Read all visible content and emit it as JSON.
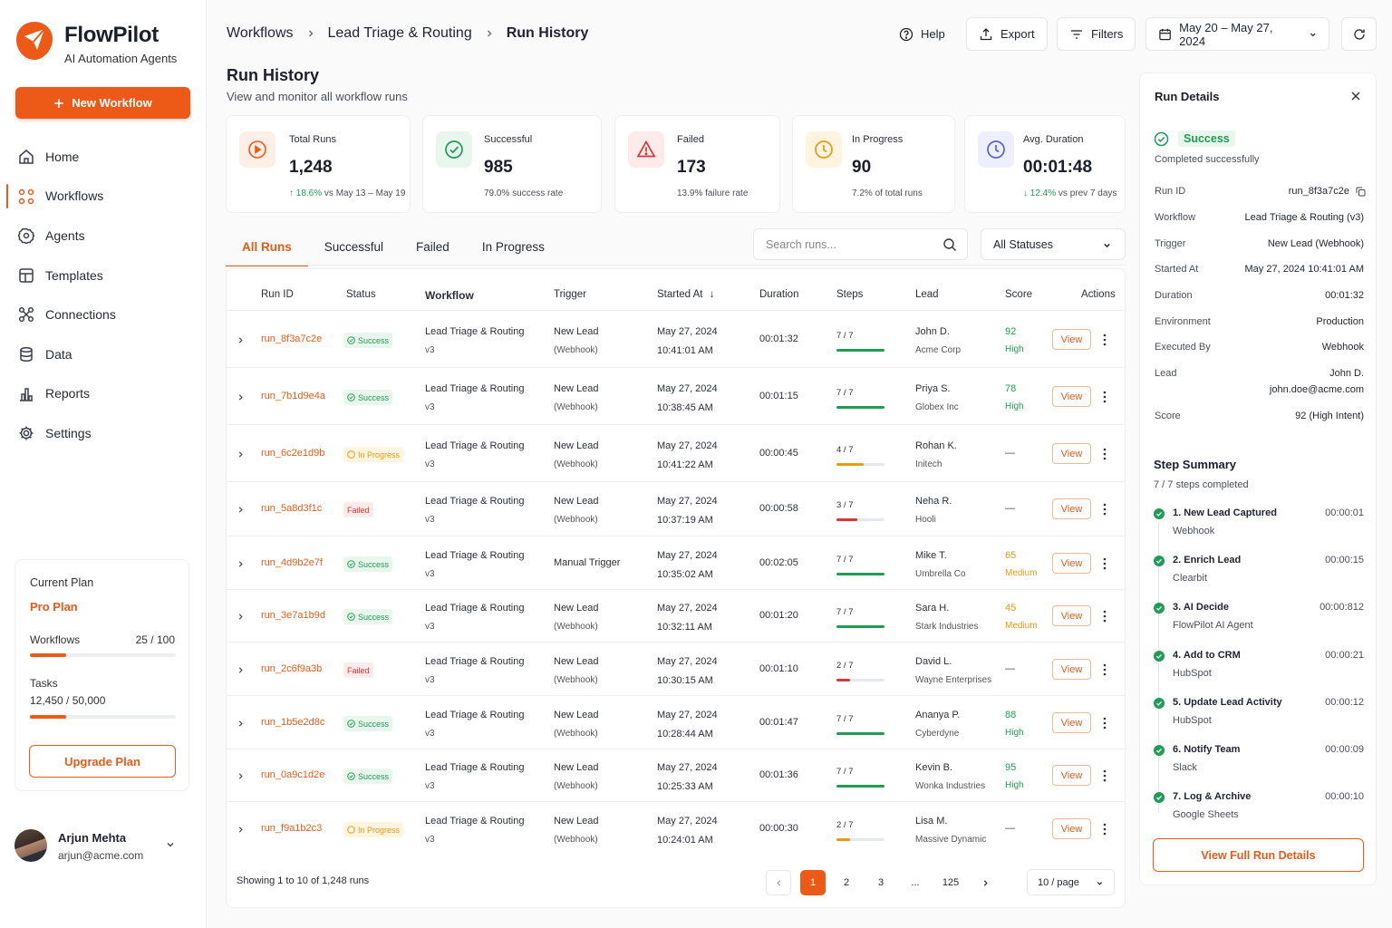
{
  "brand": {
    "name": "FlowPilot",
    "tagline": "AI Automation Agents",
    "new_button": "New Workflow"
  },
  "nav": [
    {
      "label": "Home",
      "icon": "home-icon"
    },
    {
      "label": "Workflows",
      "icon": "workflows-icon",
      "active": true
    },
    {
      "label": "Agents",
      "icon": "agents-icon"
    },
    {
      "label": "Templates",
      "icon": "templates-icon"
    },
    {
      "label": "Connections",
      "icon": "connections-icon"
    },
    {
      "label": "Data",
      "icon": "database-icon"
    },
    {
      "label": "Reports",
      "icon": "reports-icon"
    },
    {
      "label": "Settings",
      "icon": "gear-icon"
    }
  ],
  "plan": {
    "heading": "Current Plan",
    "name": "Pro Plan",
    "workflows_label": "Workflows",
    "workflows_value": "25 / 100",
    "workflows_fraction": 0.25,
    "tasks_label": "Tasks",
    "tasks_value": "12,450 / 50,000",
    "tasks_fraction": 0.249,
    "upgrade": "Upgrade Plan"
  },
  "user": {
    "name": "Arjun Mehta",
    "email": "arjun@acme.com"
  },
  "breadcrumb": [
    "Workflows",
    "Lead Triage & Routing",
    "Run History"
  ],
  "toolbar": {
    "help": "Help",
    "export": "Export",
    "filters": "Filters",
    "date_range": "May 20 – May 27, 2024"
  },
  "page": {
    "title": "Run History",
    "subtitle": "View and monitor all workflow runs"
  },
  "stats": [
    {
      "label": "Total Runs",
      "value": "1,248",
      "sub_delta": "18.6%",
      "sub_text": "vs May 13 – May 19",
      "kind": "total"
    },
    {
      "label": "Successful",
      "value": "985",
      "sub_text": "79.0% success rate",
      "kind": "success"
    },
    {
      "label": "Failed",
      "value": "173",
      "sub_text": "13.9% failure rate",
      "kind": "failed"
    },
    {
      "label": "In Progress",
      "value": "90",
      "sub_text": "7.2% of total runs",
      "kind": "progress"
    },
    {
      "label": "Avg. Duration",
      "value": "00:01:48",
      "sub_delta": "12.4%",
      "sub_text": "vs prev 7 days",
      "kind": "duration"
    }
  ],
  "tabs": [
    "All Runs",
    "Successful",
    "Failed",
    "In Progress"
  ],
  "search": {
    "placeholder": "Search runs..."
  },
  "status_filter": "All Statuses",
  "table": {
    "headers": {
      "run_id": "Run ID",
      "status": "Status",
      "workflow": "Workflow",
      "trigger": "Trigger",
      "started_at": "Started At",
      "duration": "Duration",
      "steps": "Steps",
      "lead": "Lead",
      "score": "Score",
      "actions": "Actions"
    },
    "view_label": "View",
    "rows": [
      {
        "id": "run_8f3a7c2e",
        "status": "Success",
        "status_kind": "success",
        "workflow": "Lead Triage & Routing",
        "version": "v3",
        "trigger": "New Lead",
        "trigger_sub": "(Webhook)",
        "date": "May 27, 2024",
        "time": "10:41:01 AM",
        "duration": "00:01:32",
        "steps": "7 / 7",
        "steps_fraction": 1.0,
        "lead": "John D.",
        "company": "Acme Corp",
        "score": "92",
        "score_label": "High",
        "score_kind": "high"
      },
      {
        "id": "run_7b1d9e4a",
        "status": "Success",
        "status_kind": "success",
        "workflow": "Lead Triage & Routing",
        "version": "v3",
        "trigger": "New Lead",
        "trigger_sub": "(Webhook)",
        "date": "May 27, 2024",
        "time": "10:38:45 AM",
        "duration": "00:01:15",
        "steps": "7 / 7",
        "steps_fraction": 1.0,
        "lead": "Priya S.",
        "company": "Globex Inc",
        "score": "78",
        "score_label": "High",
        "score_kind": "high"
      },
      {
        "id": "run_6c2e1d9b",
        "status": "In Progress",
        "status_kind": "progress",
        "workflow": "Lead Triage & Routing",
        "version": "v3",
        "trigger": "New Lead",
        "trigger_sub": "(Webhook)",
        "date": "May 27, 2024",
        "time": "10:41:22 AM",
        "duration": "00:00:45",
        "steps": "4 / 7",
        "steps_fraction": 0.571,
        "lead": "Rohan K.",
        "company": "Initech",
        "score": "—",
        "score_label": "",
        "score_kind": "none"
      },
      {
        "id": "run_5a8d3f1c",
        "status": "Failed",
        "status_kind": "failed",
        "workflow": "Lead Triage & Routing",
        "version": "v3",
        "trigger": "New Lead",
        "trigger_sub": "(Webhook)",
        "date": "May 27, 2024",
        "time": "10:37:19 AM",
        "duration": "00:00:58",
        "steps": "3 / 7",
        "steps_fraction": 0.429,
        "lead": "Neha R.",
        "company": "Hooli",
        "score": "—",
        "score_label": "",
        "score_kind": "none"
      },
      {
        "id": "run_4d9b2e7f",
        "status": "Success",
        "status_kind": "success",
        "workflow": "Lead Triage & Routing",
        "version": "v3",
        "trigger": "Manual Trigger",
        "trigger_sub": "",
        "date": "May 27, 2024",
        "time": "10:35:02 AM",
        "duration": "00:02:05",
        "steps": "7 / 7",
        "steps_fraction": 1.0,
        "lead": "Mike T.",
        "company": "Umbrella Co",
        "score": "65",
        "score_label": "Medium",
        "score_kind": "medium"
      },
      {
        "id": "run_3e7a1b9d",
        "status": "Success",
        "status_kind": "success",
        "workflow": "Lead Triage & Routing",
        "version": "v3",
        "trigger": "New Lead",
        "trigger_sub": "(Webhook)",
        "date": "May 27, 2024",
        "time": "10:32:11 AM",
        "duration": "00:01:20",
        "steps": "7 / 7",
        "steps_fraction": 1.0,
        "lead": "Sara H.",
        "company": "Stark Industries",
        "score": "45",
        "score_label": "Medium",
        "score_kind": "medium"
      },
      {
        "id": "run_2c6f9a3b",
        "status": "Failed",
        "status_kind": "failed",
        "workflow": "Lead Triage & Routing",
        "version": "v3",
        "trigger": "New Lead",
        "trigger_sub": "(Webhook)",
        "date": "May 27, 2024",
        "time": "10:30:15 AM",
        "duration": "00:01:10",
        "steps": "2 / 7",
        "steps_fraction": 0.286,
        "lead": "David L.",
        "company": "Wayne Enterprises",
        "score": "—",
        "score_label": "",
        "score_kind": "none"
      },
      {
        "id": "run_1b5e2d8c",
        "status": "Success",
        "status_kind": "success",
        "workflow": "Lead Triage & Routing",
        "version": "v3",
        "trigger": "New Lead",
        "trigger_sub": "(Webhook)",
        "date": "May 27, 2024",
        "time": "10:28:44 AM",
        "duration": "00:01:47",
        "steps": "7 / 7",
        "steps_fraction": 1.0,
        "lead": "Ananya P.",
        "company": "Cyberdyne",
        "score": "88",
        "score_label": "High",
        "score_kind": "high"
      },
      {
        "id": "run_0a9c1d2e",
        "status": "Success",
        "status_kind": "success",
        "workflow": "Lead Triage & Routing",
        "version": "v3",
        "trigger": "New Lead",
        "trigger_sub": "(Webhook)",
        "date": "May 27, 2024",
        "time": "10:25:33 AM",
        "duration": "00:01:36",
        "steps": "7 / 7",
        "steps_fraction": 1.0,
        "lead": "Kevin B.",
        "company": "Wonka Industries",
        "score": "95",
        "score_label": "High",
        "score_kind": "high"
      },
      {
        "id": "run_f9a1b2c3",
        "status": "In Progress",
        "status_kind": "progress",
        "workflow": "Lead Triage & Routing",
        "version": "v3",
        "trigger": "New Lead",
        "trigger_sub": "(Webhook)",
        "date": "May 27, 2024",
        "time": "10:24:01 AM",
        "duration": "00:00:30",
        "steps": "2 / 7",
        "steps_fraction": 0.286,
        "lead": "Lisa M.",
        "company": "Massive Dynamic",
        "score": "—",
        "score_label": "",
        "score_kind": "none"
      }
    ],
    "footer": "Showing 1 to 10 of 1,248 runs",
    "pages": [
      "1",
      "2",
      "3",
      "...",
      "125"
    ],
    "current_page": "1",
    "per_page": "10 / page"
  },
  "details": {
    "title": "Run Details",
    "status": "Success",
    "status_sub": "Completed successfully",
    "fields": [
      {
        "key": "Run ID",
        "value": "run_8f3a7c2e",
        "copy": true
      },
      {
        "key": "Workflow",
        "value": "Lead Triage & Routing (v3)"
      },
      {
        "key": "Trigger",
        "value": "New Lead (Webhook)"
      },
      {
        "key": "Started At",
        "value": "May 27, 2024 10:41:01 AM"
      },
      {
        "key": "Duration",
        "value": "00:01:32"
      },
      {
        "key": "Environment",
        "value": "Production"
      },
      {
        "key": "Executed By",
        "value": "Webhook"
      },
      {
        "key": "Lead",
        "value": "John D.",
        "value2": "john.doe@acme.com"
      },
      {
        "key": "Score",
        "value": "92 (High Intent)"
      }
    ],
    "summary_title": "Step Summary",
    "summary_sub": "7 / 7 steps completed",
    "steps": [
      {
        "name": "1. New Lead Captured",
        "sub": "Webhook",
        "time": "00:00:01"
      },
      {
        "name": "2. Enrich Lead",
        "sub": "Clearbit",
        "time": "00:00:15"
      },
      {
        "name": "3. AI Decide",
        "sub": "FlowPilot AI Agent",
        "time": "00:00:812"
      },
      {
        "name": "4. Add to CRM",
        "sub": "HubSpot",
        "time": "00:00:21"
      },
      {
        "name": "5. Update Lead Activity",
        "sub": "HubSpot",
        "time": "00:00:12"
      },
      {
        "name": "6. Notify Team",
        "sub": "Slack",
        "time": "00:00:09"
      },
      {
        "name": "7. Log & Archive",
        "sub": "Google Sheets",
        "time": "00:00:10"
      }
    ],
    "full_button": "View Full Run Details"
  },
  "colors": {
    "accent": "#ed5a17",
    "success": "#1f9d55",
    "failed": "#d93737",
    "progress": "#e79a13",
    "duration": "#5b5fd6"
  }
}
